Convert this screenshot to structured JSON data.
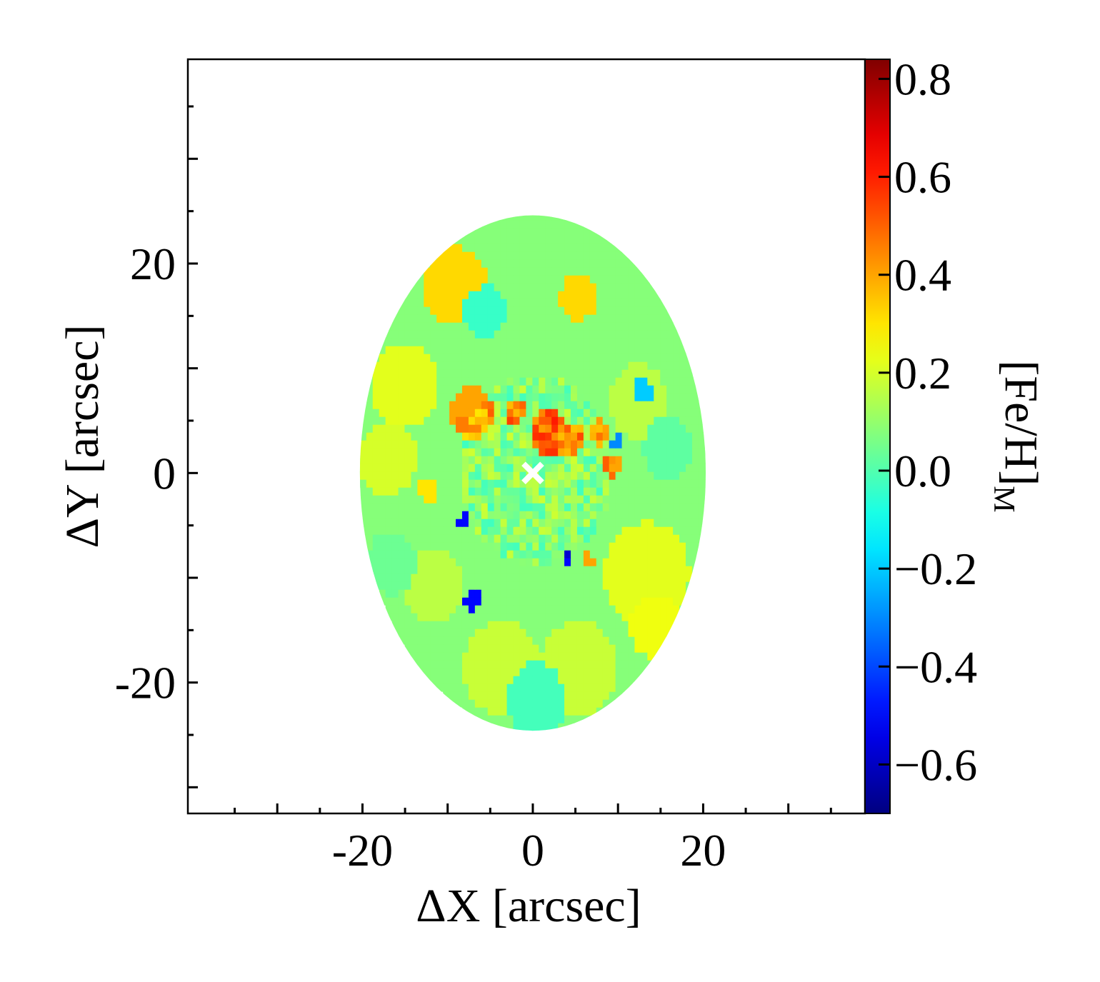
{
  "chart_data": {
    "type": "heatmap",
    "title": "",
    "xlabel": "ΔX [arcsec]",
    "ylabel": "ΔY [arcsec]",
    "xlim": [
      -40.5,
      39
    ],
    "ylim": [
      -32.5,
      39.5
    ],
    "x_ticks": [
      -20,
      0,
      20
    ],
    "y_ticks": [
      -20,
      0,
      20
    ],
    "x_tick_labels": [
      "-20",
      "0",
      "20"
    ],
    "y_tick_labels": [
      "-20",
      "0",
      "20"
    ],
    "grid": false,
    "colorbar": {
      "label_main": "[Fe/H]",
      "label_sub": "M",
      "range": [
        -0.7,
        0.84
      ],
      "ticks": [
        0.8,
        0.6,
        0.4,
        0.2,
        0.0,
        -0.2,
        -0.4,
        -0.6
      ],
      "tick_labels": [
        "0.8",
        "0.6",
        "0.4",
        "0.2",
        "0.0",
        "−0.2",
        "−0.4",
        "−0.6"
      ],
      "colormap": "jet"
    },
    "map": {
      "shape": "ellipse",
      "center": [
        0,
        0
      ],
      "semi_axis_x": 20.3,
      "semi_axis_y": 24.6,
      "background_value": 0.08,
      "regions": [
        {
          "x": -9.5,
          "y": 17.5,
          "r": 3.8,
          "value": 0.32
        },
        {
          "x": 5.0,
          "y": 16.5,
          "r": 2.2,
          "value": 0.32
        },
        {
          "x": -15.5,
          "y": 8.0,
          "r": 4.0,
          "value": 0.22
        },
        {
          "x": -17.5,
          "y": 1.0,
          "r": 3.5,
          "value": 0.2
        },
        {
          "x": 13.0,
          "y": -10.0,
          "r": 5.0,
          "value": 0.22
        },
        {
          "x": 14.0,
          "y": -15.0,
          "r": 3.0,
          "value": 0.24
        },
        {
          "x": -4.0,
          "y": -19.0,
          "r": 4.5,
          "value": 0.18
        },
        {
          "x": 5.0,
          "y": -19.0,
          "r": 4.5,
          "value": 0.18
        },
        {
          "x": 12.0,
          "y": 6.5,
          "r": 3.5,
          "value": 0.16
        },
        {
          "x": -12.0,
          "y": -11.0,
          "r": 3.5,
          "value": 0.16
        },
        {
          "x": 15.5,
          "y": 2.0,
          "r": 3.0,
          "value": 0.02
        },
        {
          "x": -17.0,
          "y": -9.0,
          "r": 3.0,
          "value": 0.04
        },
        {
          "x": 0.0,
          "y": -22.0,
          "r": 3.5,
          "value": -0.02
        },
        {
          "x": -6.0,
          "y": 15.0,
          "r": 2.5,
          "value": -0.04
        },
        {
          "x": -7.5,
          "y": 5.5,
          "r": 2.5,
          "value": 0.4
        },
        {
          "x": -8.5,
          "y": 4.3,
          "r": 1.0,
          "value": 0.46
        },
        {
          "x": 1.5,
          "y": 3.5,
          "r": 2.2,
          "value": 0.5
        },
        {
          "x": 3.8,
          "y": 2.8,
          "r": 1.8,
          "value": 0.46
        },
        {
          "x": -2.5,
          "y": 5.5,
          "r": 1.2,
          "value": 0.46
        },
        {
          "x": 7.5,
          "y": 3.5,
          "r": 1.2,
          "value": 0.4
        },
        {
          "x": 9.0,
          "y": 0.3,
          "r": 1.0,
          "value": 0.4
        },
        {
          "x": -12.5,
          "y": -1.8,
          "r": 1.2,
          "value": 0.3
        },
        {
          "x": 6.0,
          "y": -8.5,
          "r": 0.8,
          "value": 0.4
        },
        {
          "x": 12.5,
          "y": 7.5,
          "r": 1.3,
          "value": -0.2
        },
        {
          "x": 9.5,
          "y": 2.5,
          "r": 0.7,
          "value": -0.3
        },
        {
          "x": -8.5,
          "y": -5.0,
          "r": 0.7,
          "value": -0.5
        },
        {
          "x": -7.5,
          "y": -12.5,
          "r": 1.0,
          "value": -0.5
        },
        {
          "x": 3.5,
          "y": -8.5,
          "r": 0.6,
          "value": -0.5
        },
        {
          "x": -2.0,
          "y": -3.0,
          "r": 0.3,
          "value": -0.5
        }
      ],
      "marker": {
        "x": 0,
        "y": 0,
        "symbol": "×",
        "color": "#ffffff"
      }
    }
  }
}
